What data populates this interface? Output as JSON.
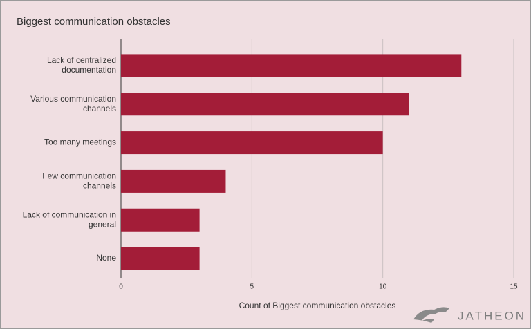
{
  "chart_data": {
    "type": "bar",
    "orientation": "horizontal",
    "title": "Biggest communication obstacles",
    "x_label": "Count of Biggest communication obstacles",
    "categories": [
      "Lack of centralized documentation",
      "Various communication channels",
      "Too many meetings",
      "Few communication channels",
      "Lack of communication in general",
      "None"
    ],
    "values": [
      13,
      11,
      10,
      4,
      3,
      3
    ],
    "color": "#a31d38",
    "xlim": [
      0,
      15
    ],
    "xticks": [
      0,
      5,
      10,
      15
    ],
    "grid": true,
    "watermark": "JATHEON"
  }
}
